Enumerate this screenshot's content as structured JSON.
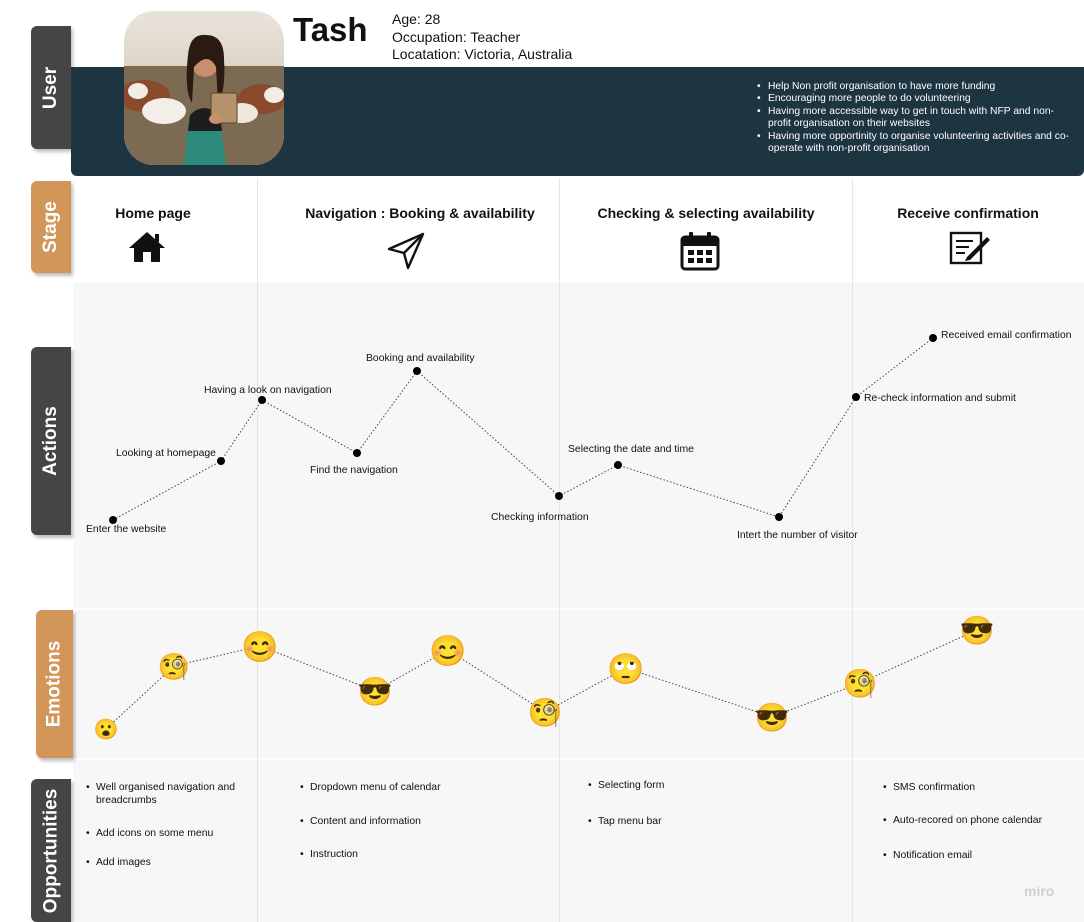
{
  "side_tabs": {
    "user": "User",
    "stage": "Stage",
    "actions": "Actions",
    "emotions": "Emotions",
    "opportunities": "Opportunities"
  },
  "persona": {
    "name": "Tash",
    "age_label": "Age:",
    "age": "28",
    "occupation_label": "Occupation:",
    "occupation": "Teacher",
    "location_label": "Locatation:",
    "location": "Victoria, Australia",
    "goals": [
      "Help Non profit organisation to have more funding",
      "Encouraging more people to do volunteering",
      "Having more accessible way to get in touch with NFP and non-profit organisation on their websites",
      "Having more opportinity to organise volunteering activities and co-operate with non-profit organisation"
    ]
  },
  "stages": [
    {
      "title": "Home page",
      "icon": "home-icon"
    },
    {
      "title": "Navigation : Booking & availability",
      "icon": "paper-plane-icon"
    },
    {
      "title": "Checking & selecting availability",
      "icon": "calendar-icon"
    },
    {
      "title": "Receive confirmation",
      "icon": "edit-form-icon"
    }
  ],
  "actions": [
    "Enter the website",
    "Looking at homepage",
    "Having a look on navigation",
    "Find the navigation",
    "Booking and availability",
    "Checking information",
    "Selecting the date and time",
    "Intert the number of visitor",
    "Re-check information and submit",
    "Received email confirmation"
  ],
  "emotions": [
    {
      "emoji": "😮",
      "name": "surprised"
    },
    {
      "emoji": "🧐",
      "name": "inspecting"
    },
    {
      "emoji": "😊",
      "name": "happy"
    },
    {
      "emoji": "😎",
      "name": "cool"
    },
    {
      "emoji": "😊",
      "name": "happy"
    },
    {
      "emoji": "🧐",
      "name": "inspecting"
    },
    {
      "emoji": "🙄",
      "name": "eye-roll"
    },
    {
      "emoji": "😎",
      "name": "cool"
    },
    {
      "emoji": "🧐",
      "name": "inspecting"
    },
    {
      "emoji": "😎",
      "name": "cool"
    }
  ],
  "opportunities": [
    [
      "Well organised navigation and breadcrumbs",
      "Add icons on some menu",
      "Add images"
    ],
    [
      "Dropdown menu of calendar",
      "Content and information",
      "Instruction"
    ],
    [
      "Selecting form",
      "Tap menu bar"
    ],
    [
      "SMS confirmation",
      "Auto-recored on phone calendar",
      "Notification email"
    ]
  ],
  "watermark": "miro",
  "colors": {
    "persona_bar": "#1d3441",
    "tab_dark": "#454545",
    "tab_orange": "#d39659"
  }
}
